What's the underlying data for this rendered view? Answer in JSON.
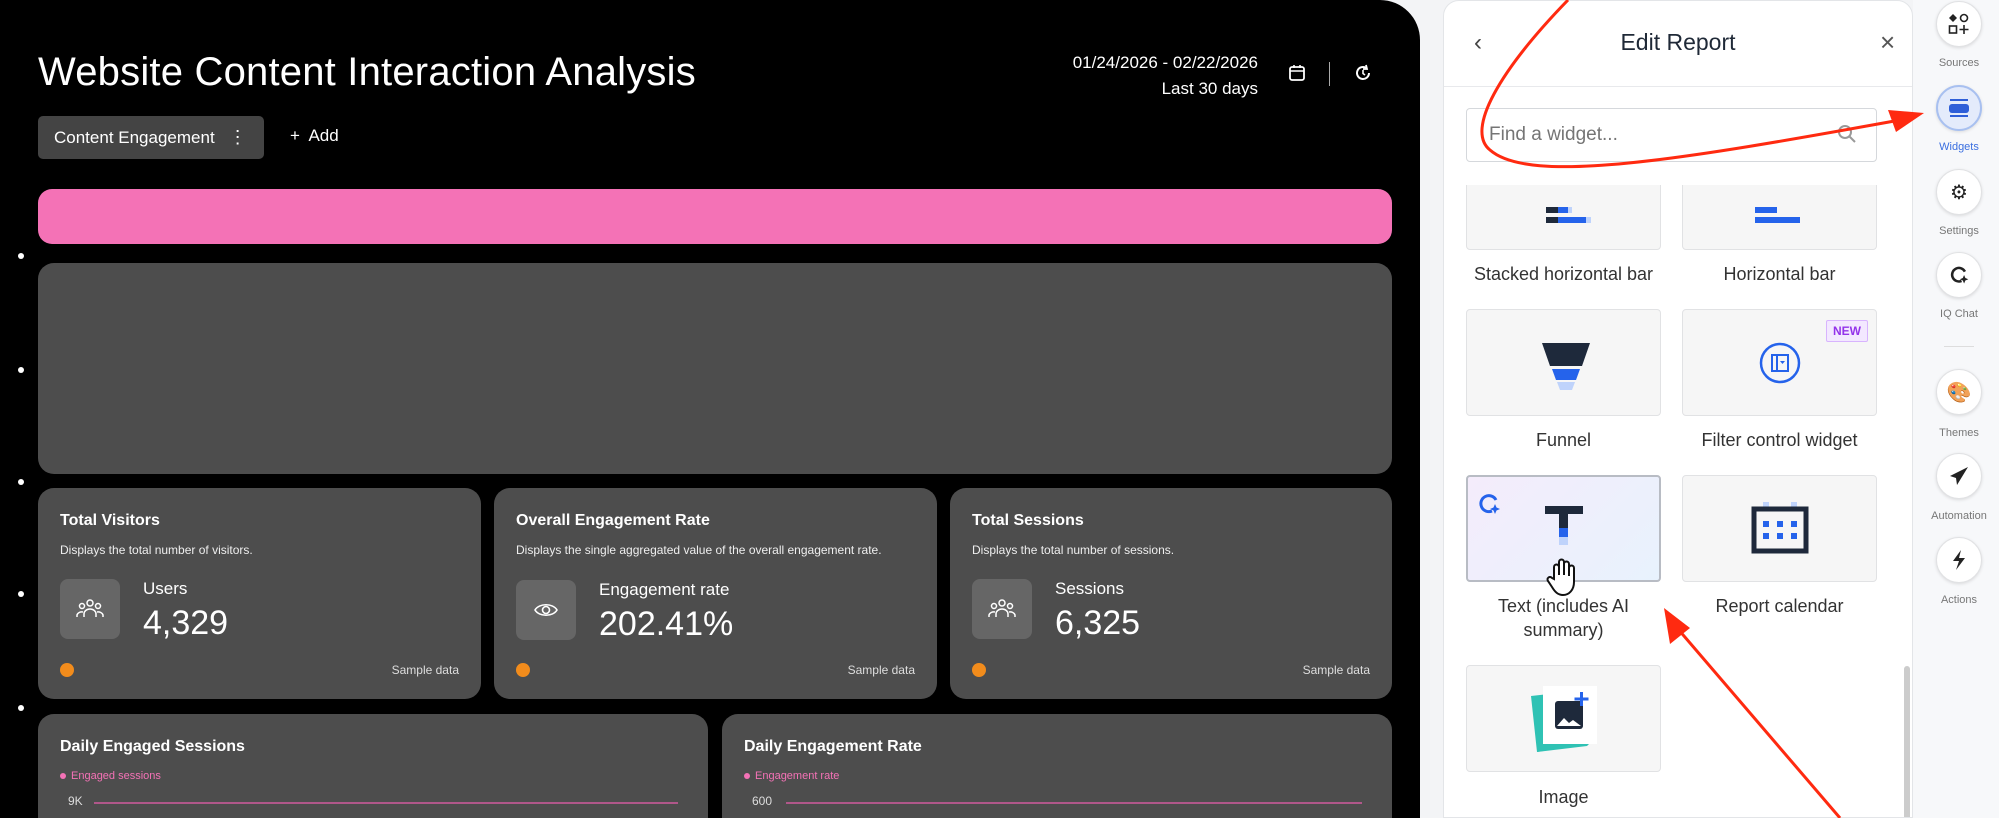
{
  "report": {
    "title": "Website Content Interaction Analysis",
    "date_range": "01/24/2026 - 02/22/2026",
    "date_preset": "Last 30 days",
    "tab": "Content Engagement",
    "add_label": "Add"
  },
  "kpis": [
    {
      "title": "Total Visitors",
      "desc": "Displays the total number of visitors.",
      "label": "Users",
      "value": "4,329",
      "icon": "users-icon",
      "footer": "Sample data"
    },
    {
      "title": "Overall Engagement Rate",
      "desc": "Displays the single aggregated value of the overall engagement rate.",
      "label": "Engagement rate",
      "value": "202.41%",
      "icon": "eye-icon",
      "footer": "Sample data"
    },
    {
      "title": "Total Sessions",
      "desc": "Displays the total number of sessions.",
      "label": "Sessions",
      "value": "6,325",
      "icon": "users-icon",
      "footer": "Sample data"
    }
  ],
  "charts": [
    {
      "title": "Daily Engaged Sessions",
      "legend": "Engaged sessions",
      "top_tick": "9K"
    },
    {
      "title": "Daily Engagement Rate",
      "legend": "Engagement rate",
      "top_tick": "600"
    }
  ],
  "panel": {
    "title": "Edit Report",
    "search_placeholder": "Find a widget...",
    "widgets": [
      {
        "label": "Stacked horizontal bar"
      },
      {
        "label": "Horizontal bar"
      },
      {
        "label": "Funnel"
      },
      {
        "label": "Filter control widget",
        "badge": "NEW"
      },
      {
        "label": "Text (includes AI summary)"
      },
      {
        "label": "Report calendar"
      },
      {
        "label": "Image"
      }
    ]
  },
  "sidebar": {
    "items": [
      {
        "label": "Sources"
      },
      {
        "label": "Widgets",
        "active": true
      },
      {
        "label": "Settings"
      },
      {
        "label": "IQ Chat"
      },
      {
        "label": "Themes"
      },
      {
        "label": "Automation"
      },
      {
        "label": "Actions"
      }
    ]
  },
  "colors": {
    "accent": "#3b6fe0",
    "pink": "#f472b6",
    "annotation": "#ff2a10"
  }
}
